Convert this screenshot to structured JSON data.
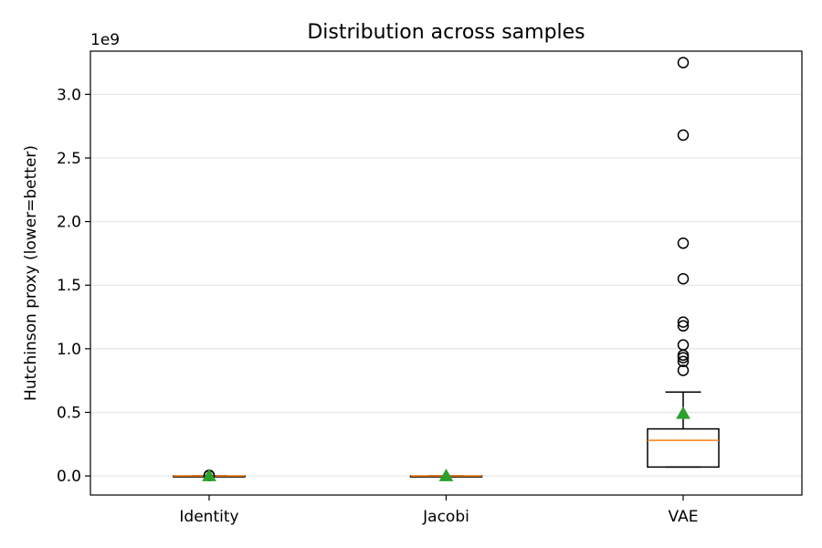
{
  "chart_data": {
    "type": "boxplot",
    "title": "Distribution across samples",
    "xlabel": "",
    "ylabel": "Hutchinson proxy (lower=better)",
    "y_offset_label": "1e9",
    "y_scale": 1000000000,
    "ylim": [
      -0.15,
      3.34
    ],
    "yticks": [
      0.0,
      0.5,
      1.0,
      1.5,
      2.0,
      2.5,
      3.0
    ],
    "ytick_labels": [
      "0.0",
      "0.5",
      "1.0",
      "1.5",
      "2.0",
      "2.5",
      "3.0"
    ],
    "grid": "y",
    "legend": "none",
    "categories": [
      "Identity",
      "Jacobi",
      "VAE"
    ],
    "boxes": [
      {
        "category": "Identity",
        "whisker_low": 0.0,
        "q1": 0.0,
        "median": 0.0,
        "q3": 0.0,
        "whisker_high": 0.0,
        "mean": 0.0,
        "outliers": [
          0.005,
          0.003
        ]
      },
      {
        "category": "Jacobi",
        "whisker_low": 0.0,
        "q1": 0.0,
        "median": 0.0,
        "q3": 0.0,
        "whisker_high": 0.0,
        "mean": 0.0,
        "outliers": []
      },
      {
        "category": "VAE",
        "whisker_low": 0.07,
        "q1": 0.07,
        "median": 0.28,
        "q3": 0.37,
        "whisker_high": 0.66,
        "mean": 0.49,
        "outliers": [
          0.83,
          0.9,
          0.93,
          0.95,
          1.03,
          1.18,
          1.21,
          1.55,
          1.83,
          2.68,
          3.25
        ]
      }
    ],
    "colors": {
      "box": "#000000",
      "median": "#ff7f0e",
      "mean": "#2ca02c",
      "grid": "#e6e6e6",
      "outlier_edge": "#000000"
    }
  }
}
